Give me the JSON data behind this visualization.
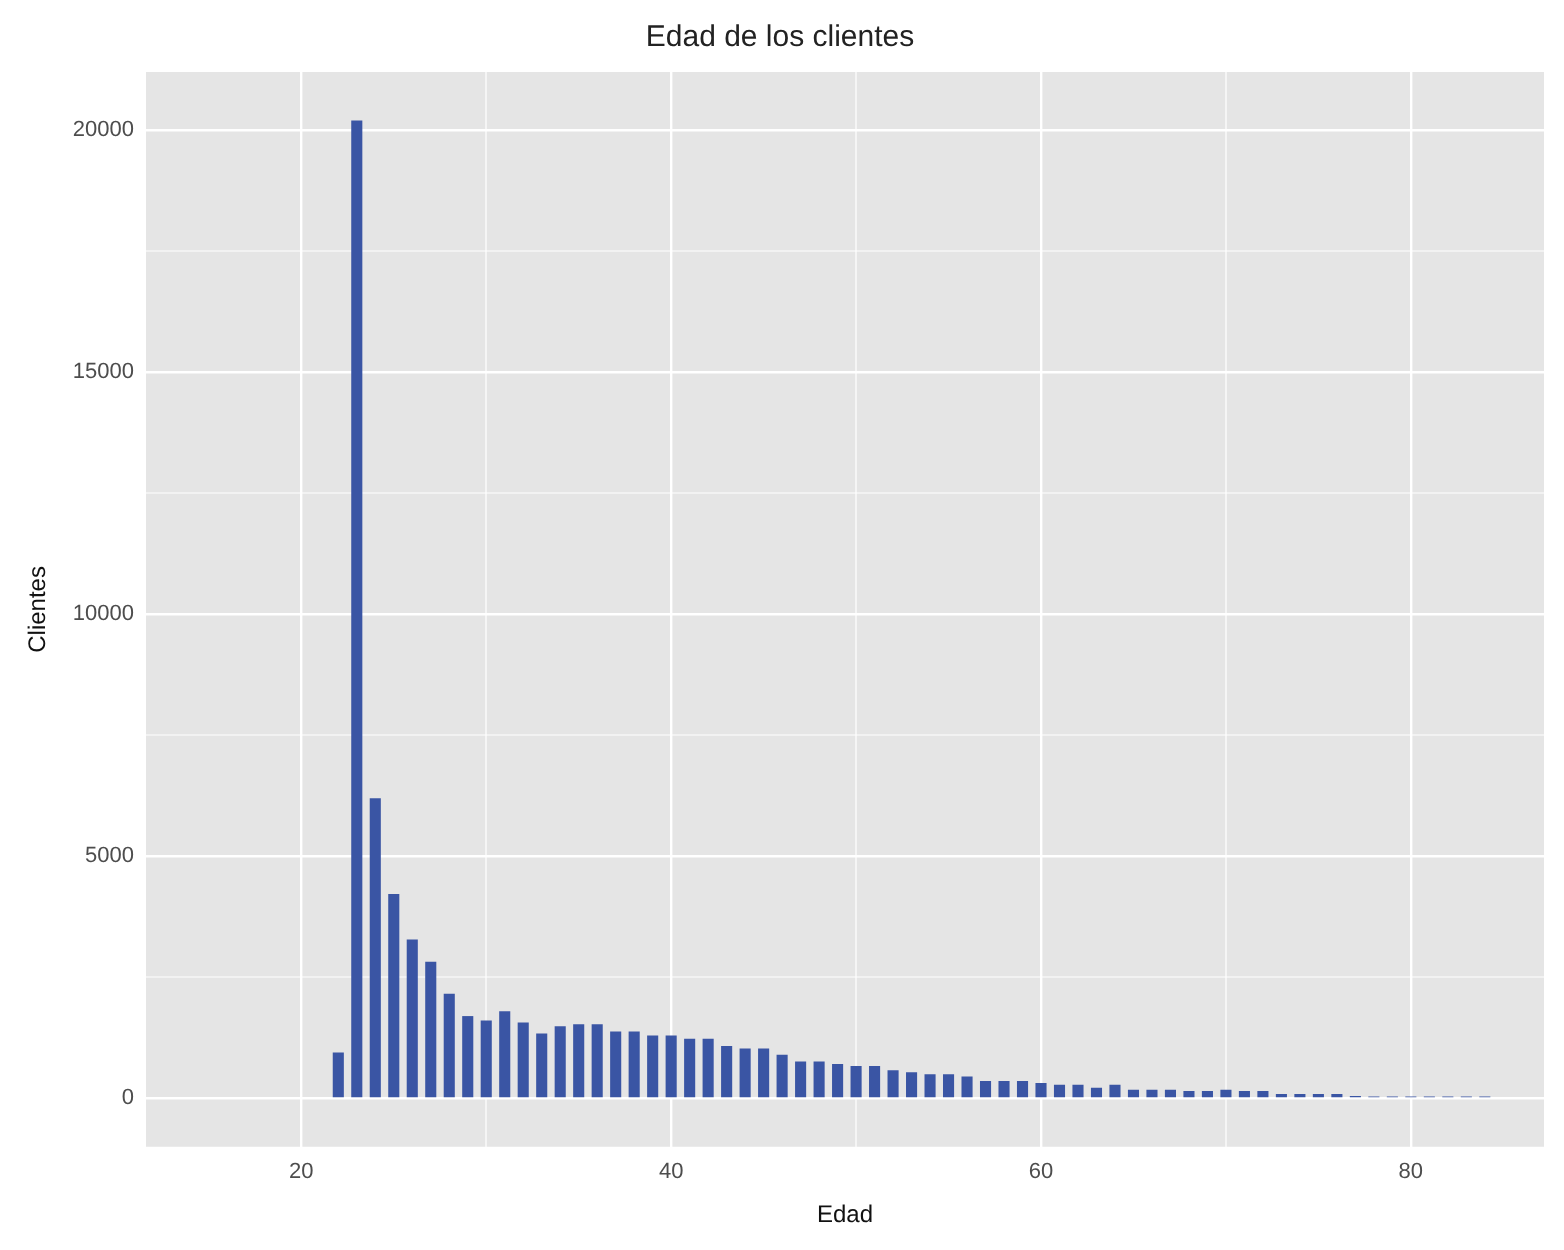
{
  "chart_data": {
    "type": "bar",
    "title": "Edad de los clientes",
    "xlabel": "Edad",
    "ylabel": "Clientes",
    "color": "#3a55a4",
    "x": [
      22,
      23,
      24,
      25,
      26,
      27,
      28,
      29,
      30,
      31,
      32,
      33,
      34,
      35,
      36,
      37,
      38,
      39,
      40,
      41,
      42,
      43,
      44,
      45,
      46,
      47,
      48,
      49,
      50,
      51,
      52,
      53,
      54,
      55,
      56,
      57,
      58,
      59,
      60,
      61,
      62,
      63,
      64,
      65,
      66,
      67,
      68,
      69,
      70,
      71,
      72,
      73,
      74,
      75,
      76,
      77,
      78,
      79,
      80,
      81,
      82,
      83,
      84
    ],
    "values": [
      950,
      20200,
      6200,
      4220,
      3280,
      2820,
      2160,
      1700,
      1610,
      1800,
      1570,
      1340,
      1490,
      1530,
      1530,
      1380,
      1380,
      1300,
      1300,
      1230,
      1230,
      1080,
      1030,
      1030,
      900,
      760,
      760,
      710,
      670,
      670,
      580,
      540,
      500,
      500,
      450,
      360,
      360,
      360,
      320,
      280,
      280,
      220,
      280,
      180,
      180,
      180,
      150,
      150,
      180,
      150,
      150,
      90,
      90,
      90,
      90,
      50,
      40,
      40,
      40,
      40,
      40,
      40,
      40
    ],
    "xlim": [
      11.6,
      87.2
    ],
    "xticks": [
      20,
      {
        "value": 30,
        "label": null
      },
      40,
      {
        "value": 50,
        "label": null
      },
      60,
      {
        "value": 70,
        "label": null
      },
      80
    ],
    "ylim": [
      -1000,
      21200
    ],
    "yticks": [
      0,
      {
        "value": 2500,
        "label": null
      },
      5000,
      {
        "value": 7500,
        "label": null
      },
      10000,
      {
        "value": 12500,
        "label": null
      },
      15000,
      {
        "value": 17500,
        "label": null
      },
      20000
    ],
    "grid": true,
    "legend": false
  }
}
